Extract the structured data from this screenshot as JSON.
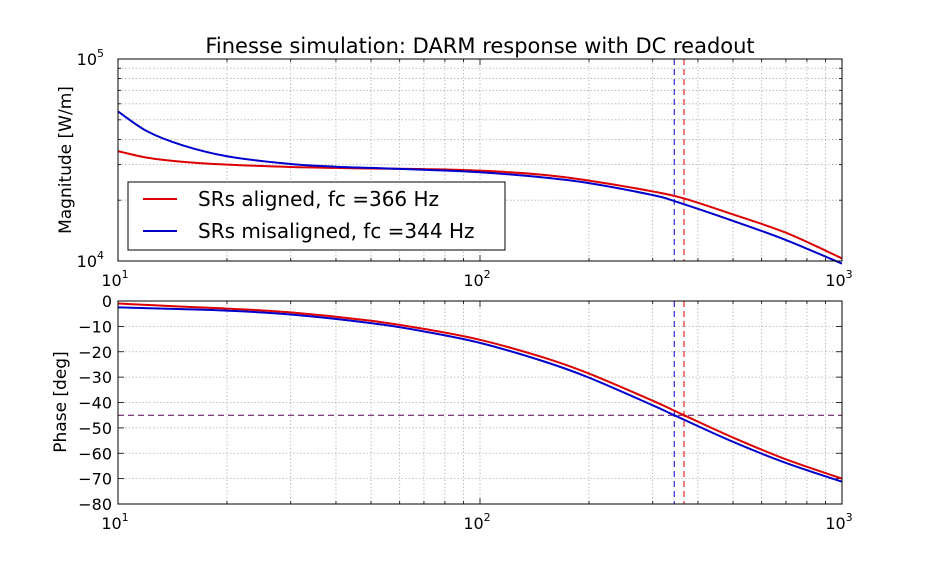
{
  "chart_data": [
    {
      "type": "line",
      "title": "Finesse simulation: DARM response with DC readout",
      "xlabel": "",
      "ylabel": "Magnitude [W/m]",
      "xscale": "log",
      "yscale": "log",
      "xlim": [
        10,
        1000
      ],
      "ylim": [
        10000,
        100000
      ],
      "x_ticks": [
        {
          "value": 10,
          "base": "10",
          "exp": "1"
        },
        {
          "value": 100,
          "base": "10",
          "exp": "2"
        },
        {
          "value": 1000,
          "base": "10",
          "exp": "3"
        }
      ],
      "y_ticks": [
        {
          "value": 10000,
          "base": "10",
          "exp": "4"
        },
        {
          "value": 100000,
          "base": "10",
          "exp": "5"
        }
      ],
      "grid": true,
      "legend_position": "lower-left",
      "vlines": [
        {
          "x": 344,
          "color": "#0000cc",
          "style": "dashed"
        },
        {
          "x": 366,
          "color": "#dd0000",
          "style": "dashed"
        }
      ],
      "series": [
        {
          "name": "SRs aligned, fc =366 Hz",
          "color": "#dd0000",
          "x": [
            10,
            12,
            15,
            20,
            30,
            40,
            50,
            70,
            100,
            150,
            200,
            300,
            366,
            500,
            700,
            1000
          ],
          "y": [
            35000,
            32500,
            31000,
            30000,
            29200,
            28900,
            28700,
            28500,
            28000,
            26700,
            25000,
            22100,
            20400,
            17000,
            13800,
            10300
          ]
        },
        {
          "name": "SRs misaligned, fc =344 Hz",
          "color": "#0000cc",
          "x": [
            10,
            12,
            15,
            20,
            30,
            40,
            50,
            70,
            100,
            150,
            200,
            300,
            344,
            500,
            700,
            1000
          ],
          "y": [
            55000,
            44000,
            37500,
            33000,
            30200,
            29300,
            28900,
            28300,
            27500,
            25900,
            24300,
            21200,
            19800,
            15800,
            12700,
            9700
          ]
        }
      ]
    },
    {
      "type": "line",
      "title": "",
      "xlabel": "",
      "ylabel": "Phase [deg]",
      "xscale": "log",
      "yscale": "linear",
      "xlim": [
        10,
        1000
      ],
      "ylim": [
        -80,
        0
      ],
      "x_ticks": [
        {
          "value": 10,
          "base": "10",
          "exp": "1"
        },
        {
          "value": 100,
          "base": "10",
          "exp": "2"
        },
        {
          "value": 1000,
          "base": "10",
          "exp": "3"
        }
      ],
      "y_ticks": [
        {
          "value": 0,
          "label": "0"
        },
        {
          "value": -10,
          "label": "−10"
        },
        {
          "value": -20,
          "label": "−20"
        },
        {
          "value": -30,
          "label": "−30"
        },
        {
          "value": -40,
          "label": "−40"
        },
        {
          "value": -50,
          "label": "−50"
        },
        {
          "value": -60,
          "label": "−60"
        },
        {
          "value": -70,
          "label": "−70"
        },
        {
          "value": -80,
          "label": "−80"
        }
      ],
      "grid": true,
      "hlines": [
        {
          "y": -45,
          "color": "#550055",
          "style": "dashed"
        }
      ],
      "vlines": [
        {
          "x": 344,
          "color": "#0000cc",
          "style": "dashed"
        },
        {
          "x": 366,
          "color": "#dd0000",
          "style": "dashed"
        }
      ],
      "series": [
        {
          "name": "SRs aligned, fc =366 Hz",
          "color": "#dd0000",
          "x": [
            10,
            15,
            20,
            30,
            50,
            70,
            100,
            150,
            200,
            300,
            366,
            500,
            700,
            1000
          ],
          "y": [
            -1.0,
            -2.2,
            -3.0,
            -4.5,
            -7.8,
            -11.0,
            -15.3,
            -22.3,
            -28.6,
            -39.3,
            -45.0,
            -53.8,
            -62.4,
            -70.0
          ]
        },
        {
          "name": "SRs misaligned, fc =344 Hz",
          "color": "#0000cc",
          "x": [
            10,
            15,
            20,
            30,
            50,
            70,
            100,
            150,
            200,
            300,
            344,
            500,
            700,
            1000
          ],
          "y": [
            -2.5,
            -3.2,
            -3.8,
            -5.3,
            -8.7,
            -12.0,
            -16.5,
            -23.8,
            -30.2,
            -41.1,
            -45.0,
            -55.5,
            -63.8,
            -71.2
          ]
        }
      ]
    }
  ]
}
